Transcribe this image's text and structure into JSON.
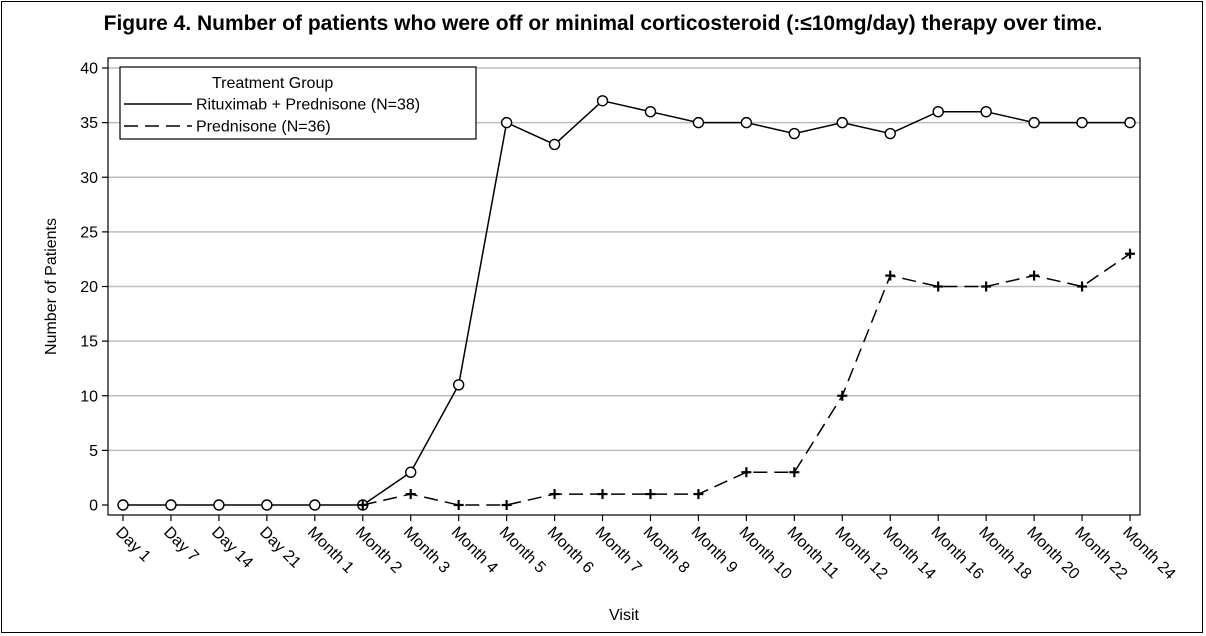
{
  "figure_title": "Figure 4. Number of patients who were off or minimal corticosteroid (:≤10mg/day) therapy over time.",
  "chart_data": {
    "type": "line",
    "title": "Figure 4. Number of patients who were off or minimal corticosteroid (:≤10mg/day) therapy over time.",
    "xlabel": "Visit",
    "ylabel": "Number of Patients",
    "ylim": [
      0,
      40
    ],
    "yticks": [
      0,
      5,
      10,
      15,
      20,
      25,
      30,
      35,
      40
    ],
    "grid": "horizontal",
    "legend": {
      "title": "Treatment Group",
      "placement": "top-left"
    },
    "categories": [
      "Day 1",
      "Day 7",
      "Day 14",
      "Day 21",
      "Month 1",
      "Month 2",
      "Month 3",
      "Month 4",
      "Month 5",
      "Month 6",
      "Month 7",
      "Month 8",
      "Month 9",
      "Month 10",
      "Month 11",
      "Month 12",
      "Month 14",
      "Month 16",
      "Month 18",
      "Month 20",
      "Month 22",
      "Month 24"
    ],
    "series": [
      {
        "name": "Rituximab + Prednisone (N=38)",
        "line_style": "solid",
        "marker": "circle",
        "values": [
          0,
          0,
          0,
          0,
          0,
          0,
          3,
          11,
          35,
          33,
          37,
          36,
          35,
          35,
          34,
          35,
          34,
          36,
          36,
          35,
          35,
          35
        ]
      },
      {
        "name": "Prednisone (N=36)",
        "line_style": "dashed",
        "marker": "plus",
        "values": [
          null,
          null,
          null,
          null,
          null,
          0,
          1,
          0,
          0,
          1,
          1,
          1,
          1,
          3,
          3,
          10,
          21,
          20,
          20,
          21,
          20,
          23
        ]
      }
    ]
  }
}
